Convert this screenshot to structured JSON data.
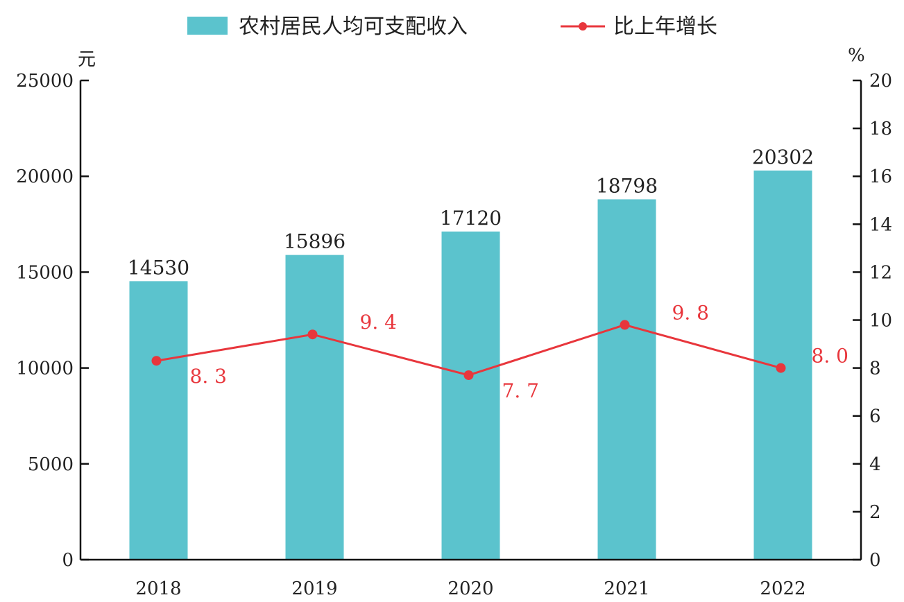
{
  "chart_data": {
    "type": "bar",
    "categories": [
      "2018",
      "2019",
      "2020",
      "2021",
      "2022"
    ],
    "series": [
      {
        "name": "农村居民人均可支配收入",
        "type": "bar",
        "axis": "left",
        "values": [
          14530,
          15896,
          17120,
          18798,
          20302
        ],
        "labels": [
          "14530",
          "15896",
          "17120",
          "18798",
          "20302"
        ],
        "color": "#5bc3cd"
      },
      {
        "name": "比上年增长",
        "type": "line",
        "axis": "right",
        "values": [
          8.3,
          9.4,
          7.7,
          9.8,
          8.0
        ],
        "labels": [
          "8. 3",
          "9. 4",
          "7. 7",
          "9. 8",
          "8. 0"
        ],
        "color": "#e8363c"
      }
    ],
    "left_axis": {
      "unit": "元",
      "ylim": [
        0,
        25000
      ],
      "ticks": [
        "0",
        "5000",
        "10000",
        "15000",
        "20000",
        "25000"
      ]
    },
    "right_axis": {
      "unit": "%",
      "ylim": [
        0,
        20
      ],
      "ticks": [
        "0",
        "2",
        "4",
        "6",
        "8",
        "10",
        "12",
        "14",
        "16",
        "18",
        "20"
      ]
    },
    "grid": false,
    "legend_position": "top-center"
  }
}
